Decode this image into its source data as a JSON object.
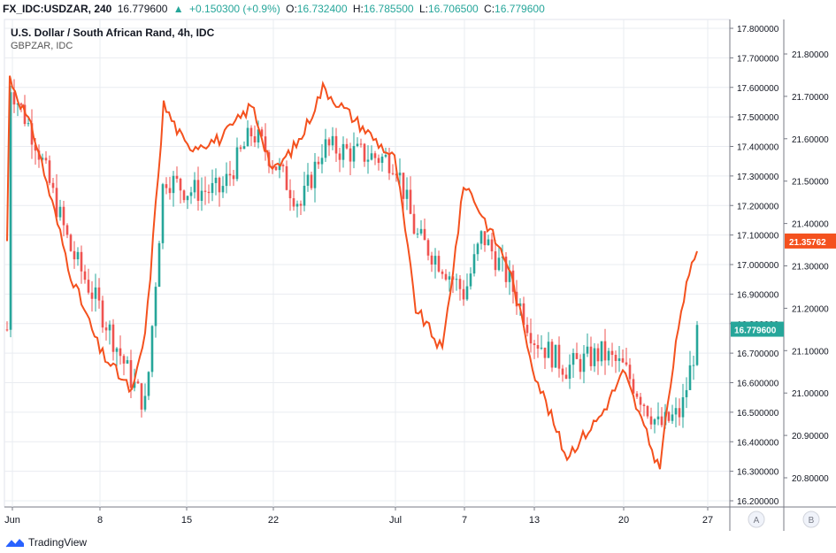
{
  "header": {
    "symbol": "FX_IDC:USDZAR, 240",
    "last": "16.779600",
    "change": "+0.150300 (+0.9%)",
    "o_label": "O:",
    "o_value": "16.732400",
    "h_label": "H:",
    "h_value": "16.785500",
    "l_label": "L:",
    "l_value": "16.706500",
    "c_label": "C:",
    "c_value": "16.779600"
  },
  "legend": {
    "title": "U.S. Dollar / South African Rand, 4h, IDC",
    "compare": "GBPZAR, IDC"
  },
  "colors": {
    "up": "#26a69a",
    "down": "#ef5350",
    "compare_line": "#f4511e",
    "grid": "#e9ecf1"
  },
  "axes": {
    "left_scale": [
      "17.800000",
      "17.700000",
      "17.600000",
      "17.500000",
      "17.400000",
      "17.300000",
      "17.200000",
      "17.100000",
      "17.000000",
      "16.900000",
      "16.800000",
      "16.700000",
      "16.600000",
      "16.500000",
      "16.400000",
      "16.300000",
      "16.200000"
    ],
    "right_scale": [
      "21.80000",
      "21.70000",
      "21.60000",
      "21.50000",
      "21.40000",
      "21.30000",
      "21.20000",
      "21.10000",
      "21.00000",
      "20.90000",
      "20.80000"
    ],
    "x_labels": [
      "Jun",
      "8",
      "15",
      "22",
      "Jul",
      "7",
      "13",
      "20",
      "27"
    ],
    "price_badge": "16.779600",
    "compare_badge": "21.35762",
    "scale_a": "A",
    "scale_b": "B"
  },
  "chart_data": {
    "type": "line",
    "series": [
      {
        "name": "USDZAR",
        "x": [
          "Jun 1",
          "Jun 3",
          "Jun 5",
          "Jun 8",
          "Jun 10",
          "Jun 11",
          "Jun 12",
          "Jun 15",
          "Jun 17",
          "Jun 19",
          "Jun 22",
          "Jun 24",
          "Jun 26",
          "Jul 1",
          "Jul 3",
          "Jul 6",
          "Jul 7",
          "Jul 8",
          "Jul 10",
          "Jul 13",
          "Jul 15",
          "Jul 17",
          "Jul 20",
          "Jul 22",
          "Jul 23",
          "Jul 24"
        ],
        "values": [
          17.62,
          17.42,
          17.05,
          16.85,
          16.6,
          16.52,
          17.3,
          17.25,
          17.25,
          17.45,
          17.35,
          17.2,
          17.4,
          17.35,
          17.1,
          17.0,
          16.9,
          17.1,
          16.95,
          16.75,
          16.65,
          16.7,
          16.65,
          16.45,
          16.5,
          16.78
        ]
      },
      {
        "name": "GBPZAR",
        "x": [
          "Jun 1",
          "Jun 3",
          "Jun 5",
          "Jun 8",
          "Jun 10",
          "Jun 11",
          "Jun 12",
          "Jun 15",
          "Jun 17",
          "Jun 19",
          "Jun 22",
          "Jun 24",
          "Jun 26",
          "Jul 1",
          "Jul 3",
          "Jul 6",
          "Jul 7",
          "Jul 8",
          "Jul 10",
          "Jul 13",
          "Jul 15",
          "Jul 17",
          "Jul 20",
          "Jul 22",
          "Jul 23",
          "Jul 24"
        ],
        "values": [
          21.75,
          21.6,
          21.28,
          21.1,
          21.0,
          21.15,
          21.68,
          21.58,
          21.6,
          21.68,
          21.52,
          21.6,
          21.72,
          21.55,
          21.2,
          21.1,
          21.5,
          21.42,
          21.3,
          21.05,
          20.85,
          20.95,
          21.05,
          20.82,
          21.2,
          21.36
        ]
      }
    ],
    "ylim_left": [
      16.2,
      17.8
    ],
    "ylim_right": [
      20.8,
      21.8
    ],
    "grid": true
  }
}
